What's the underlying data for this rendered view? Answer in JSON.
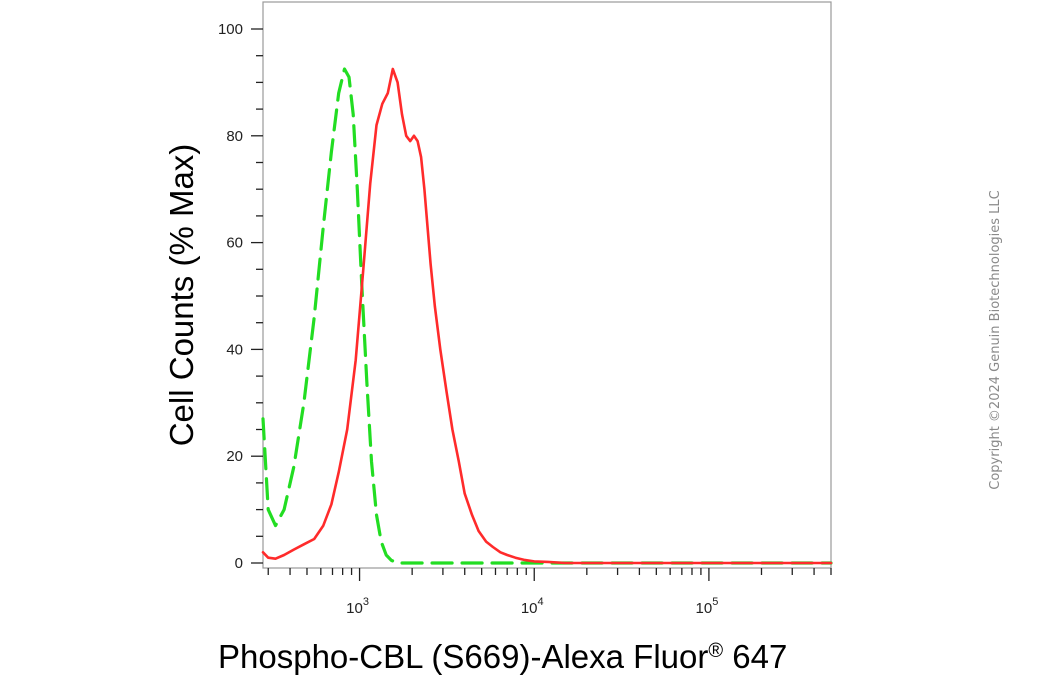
{
  "chart_data": {
    "type": "line",
    "xlabel": "Phospho-CBL (S669)-Alexa Fluor",
    "xlabel_superscript": "®",
    "xlabel_suffix": " 647",
    "ylabel": "Cell Counts (% Max)",
    "x_scale": "log",
    "xlim": [
      280,
      500000
    ],
    "ylim": [
      0,
      105
    ],
    "x_ticks": [
      {
        "value": 1000,
        "base": "10",
        "exp": "3"
      },
      {
        "value": 10000,
        "base": "10",
        "exp": "4"
      },
      {
        "value": 100000,
        "base": "10",
        "exp": "5"
      }
    ],
    "y_ticks": [
      0,
      20,
      40,
      60,
      80,
      100
    ],
    "grid": false,
    "series": [
      {
        "style": "dashed",
        "color": "#22dd22",
        "x": [
          280,
          300,
          330,
          370,
          420,
          480,
          550,
          620,
          690,
          760,
          820,
          870,
          920,
          970,
          1030,
          1100,
          1170,
          1250,
          1330,
          1420,
          1520,
          1640,
          1780,
          1950,
          2200,
          2600,
          3500,
          5000,
          8000,
          20000,
          100000,
          500000
        ],
        "y": [
          27,
          10,
          7,
          10,
          18,
          30,
          46,
          63,
          77,
          88,
          92.5,
          91,
          84,
          70,
          52,
          34,
          19,
          9,
          4,
          1.5,
          0.5,
          0,
          0,
          0,
          0,
          0,
          0,
          0,
          0,
          0,
          0,
          0
        ]
      },
      {
        "style": "solid",
        "color": "#ff2b2b",
        "x": [
          280,
          300,
          330,
          370,
          420,
          480,
          550,
          620,
          690,
          760,
          850,
          950,
          1050,
          1150,
          1250,
          1350,
          1450,
          1550,
          1650,
          1750,
          1850,
          1950,
          2050,
          2150,
          2250,
          2350,
          2450,
          2550,
          2700,
          2900,
          3150,
          3400,
          3700,
          4000,
          4400,
          4800,
          5300,
          5800,
          6400,
          7000,
          7800,
          8700,
          10000,
          12000,
          15000,
          20000,
          40000,
          100000,
          500000
        ],
        "y": [
          2,
          1,
          0.8,
          1.5,
          2.5,
          3.5,
          4.5,
          7,
          11,
          17,
          25,
          38,
          55,
          71,
          82,
          86,
          88,
          92.5,
          90,
          84,
          80,
          79,
          80,
          79,
          76,
          70,
          63,
          56,
          48,
          40,
          32,
          25,
          19,
          13,
          9,
          6,
          4,
          3,
          2,
          1.5,
          1,
          0.6,
          0.3,
          0.2,
          0,
          0,
          0,
          0,
          0
        ]
      }
    ]
  },
  "copyright": "Copyright ©2024 Genuin Biotechnologies LLC"
}
